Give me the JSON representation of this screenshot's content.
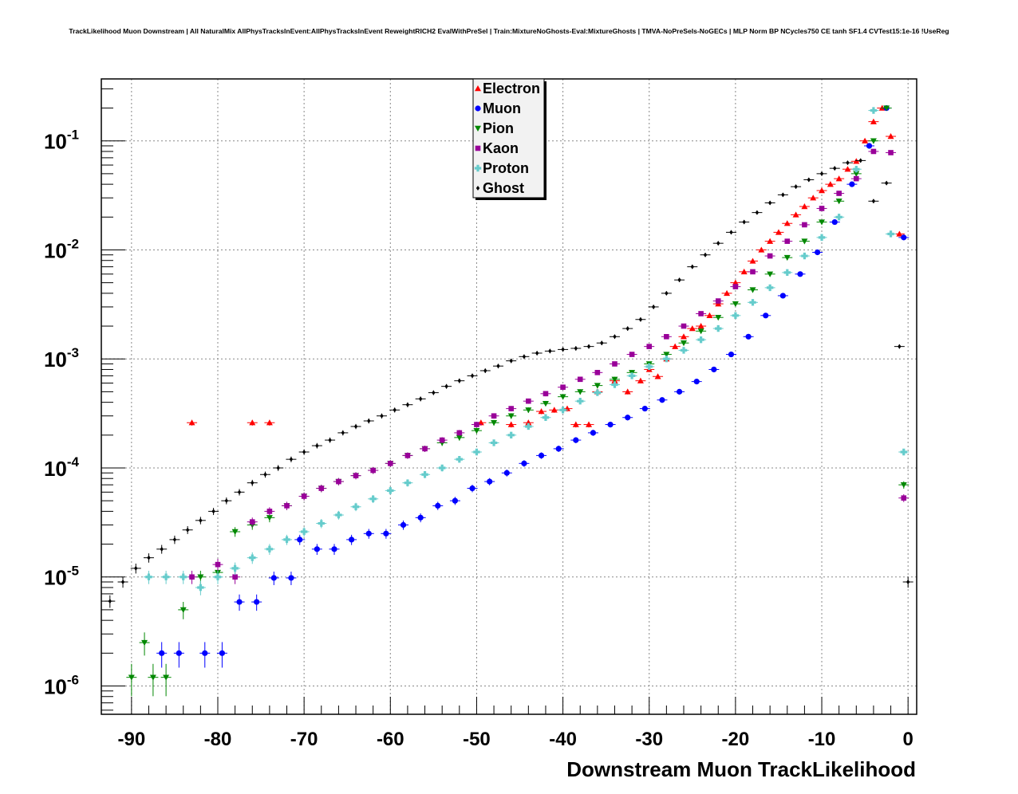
{
  "chart_data": {
    "type": "scatter",
    "title": "TrackLikelihood Muon Downstream | All NaturalMix AllPhysTracksInEvent:AllPhysTracksInEvent ReweightRICH2 EvalWithPreSel | Train:MixtureNoGhosts-Eval:MixtureGhosts | TMVA-NoPreSels-NoGECs | MLP Norm BP NCycles750 CE tanh SF1.4 CVTest15:1e-16 !UseReg",
    "xlabel": "Downstream Muon TrackLikelihood",
    "ylabel": "",
    "xlim": [
      -93.5,
      1
    ],
    "ylim": [
      5.5e-07,
      0.37
    ],
    "yscale": "log",
    "grid": true,
    "legend_position": "top-center",
    "x_ticks": [
      -90,
      -80,
      -70,
      -60,
      -50,
      -40,
      -30,
      -20,
      -10,
      0
    ],
    "x_tick_labels": [
      "-90",
      "-80",
      "-70",
      "-60",
      "-50",
      "-40",
      "-30",
      "-20",
      "-10",
      "0"
    ],
    "y_ticks": [
      1e-06,
      1e-05,
      0.0001,
      0.001,
      0.01,
      0.1
    ],
    "y_tick_labels": [
      {
        "base": "10",
        "exp": "-6"
      },
      {
        "base": "10",
        "exp": "-5"
      },
      {
        "base": "10",
        "exp": "-4"
      },
      {
        "base": "10",
        "exp": "-3"
      },
      {
        "base": "10",
        "exp": "-2"
      },
      {
        "base": "10",
        "exp": "-1"
      }
    ],
    "series": [
      {
        "name": "Electron",
        "color": "#ff0000",
        "marker": "triangle-up",
        "x": [
          -83,
          -76,
          -74,
          -49.5,
          -46,
          -44,
          -42.5,
          -41,
          -39.5,
          -38.5,
          -37,
          -36,
          -34,
          -32.5,
          -31,
          -30,
          -29,
          -28,
          -27,
          -26,
          -25,
          -24,
          -23,
          -22,
          -21,
          -20,
          -19,
          -18,
          -17,
          -16,
          -15,
          -14,
          -13,
          -12,
          -11,
          -10,
          -9,
          -8,
          -7,
          -6,
          -5,
          -4,
          -3,
          -2,
          -1
        ],
        "y": [
          0.00026,
          0.00026,
          0.00026,
          0.00026,
          0.00025,
          0.00026,
          0.00033,
          0.00034,
          0.00035,
          0.00025,
          0.00025,
          0.0005,
          0.00063,
          0.0005,
          0.00063,
          0.0008,
          0.00069,
          0.001,
          0.0013,
          0.0016,
          0.0019,
          0.002,
          0.0025,
          0.0032,
          0.004,
          0.005,
          0.0063,
          0.0079,
          0.01,
          0.012,
          0.0145,
          0.0175,
          0.021,
          0.025,
          0.03,
          0.035,
          0.04,
          0.045,
          0.055,
          0.065,
          0.1,
          0.15,
          0.2,
          0.11,
          0.014
        ]
      },
      {
        "name": "Muon",
        "color": "#0000ff",
        "marker": "circle",
        "x": [
          -86.5,
          -84.5,
          -81.5,
          -79.5,
          -77.5,
          -75.5,
          -73.5,
          -71.5,
          -70.5,
          -68.5,
          -66.5,
          -64.5,
          -62.5,
          -60.5,
          -58.5,
          -56.5,
          -54.5,
          -52.5,
          -50.5,
          -48.5,
          -46.5,
          -44.5,
          -42.5,
          -40.5,
          -38.5,
          -36.5,
          -34.5,
          -32.5,
          -30.5,
          -28.5,
          -26.5,
          -24.5,
          -22.5,
          -20.5,
          -18.5,
          -16.5,
          -14.5,
          -12.5,
          -10.5,
          -8.5,
          -6.5,
          -4.5,
          -2.5,
          -0.5
        ],
        "y": [
          2e-06,
          2e-06,
          2e-06,
          2e-06,
          5.9e-06,
          5.9e-06,
          9.8e-06,
          9.8e-06,
          2.2e-05,
          1.8e-05,
          1.8e-05,
          2.2e-05,
          2.5e-05,
          2.5e-05,
          3e-05,
          3.5e-05,
          4.5e-05,
          5e-05,
          6.5e-05,
          7.5e-05,
          9e-05,
          0.00011,
          0.00013,
          0.00015,
          0.00018,
          0.00021,
          0.00025,
          0.00029,
          0.00035,
          0.00042,
          0.0005,
          0.00062,
          0.0008,
          0.0011,
          0.0016,
          0.0025,
          0.0038,
          0.006,
          0.0095,
          0.018,
          0.04,
          0.09,
          0.2,
          0.013
        ]
      },
      {
        "name": "Pion",
        "color": "#008800",
        "marker": "triangle-down",
        "x": [
          -90,
          -88.5,
          -87.5,
          -86,
          -84,
          -82,
          -80,
          -78,
          -76,
          -74,
          -72,
          -70,
          -68,
          -66,
          -64,
          -62,
          -60,
          -58,
          -56,
          -54,
          -52,
          -50,
          -48,
          -46,
          -44,
          -42,
          -40,
          -38,
          -36,
          -34,
          -32,
          -30,
          -28,
          -26,
          -24,
          -22,
          -20,
          -18,
          -16,
          -14,
          -12,
          -10,
          -8,
          -6,
          -4,
          -2.5,
          -0.5
        ],
        "y": [
          1.2e-06,
          2.5e-06,
          1.2e-06,
          1.2e-06,
          5e-06,
          1e-05,
          1.1e-05,
          2.6e-05,
          3e-05,
          3.5e-05,
          4.5e-05,
          5.5e-05,
          6.5e-05,
          7.5e-05,
          8.5e-05,
          9.5e-05,
          0.00011,
          0.00013,
          0.00015,
          0.00017,
          0.00019,
          0.00022,
          0.00026,
          0.0003,
          0.00034,
          0.00039,
          0.00045,
          0.0005,
          0.00057,
          0.00065,
          0.00075,
          0.0009,
          0.0011,
          0.0014,
          0.0018,
          0.0024,
          0.0032,
          0.0043,
          0.006,
          0.0085,
          0.012,
          0.018,
          0.028,
          0.05,
          0.1,
          0.2,
          7e-05
        ]
      },
      {
        "name": "Kaon",
        "color": "#990099",
        "marker": "square",
        "x": [
          -83,
          -80,
          -78,
          -76,
          -74,
          -72,
          -70,
          -68,
          -66,
          -64,
          -62,
          -60,
          -58,
          -56,
          -54,
          -52,
          -50,
          -48,
          -46,
          -44,
          -42,
          -40,
          -38,
          -36,
          -34,
          -32,
          -30,
          -28,
          -26,
          -24,
          -22,
          -20,
          -18,
          -16,
          -14,
          -12,
          -10,
          -8,
          -6,
          -4,
          -2,
          -0.5
        ],
        "y": [
          1e-05,
          1.3e-05,
          1e-05,
          3.2e-05,
          4e-05,
          4.5e-05,
          5.5e-05,
          6.5e-05,
          7.5e-05,
          8.5e-05,
          9.5e-05,
          0.00011,
          0.00013,
          0.00015,
          0.00018,
          0.00021,
          0.00025,
          0.0003,
          0.00035,
          0.00041,
          0.00048,
          0.00055,
          0.00065,
          0.00075,
          0.0009,
          0.0011,
          0.0013,
          0.0016,
          0.002,
          0.0026,
          0.0034,
          0.0046,
          0.0063,
          0.0088,
          0.012,
          0.017,
          0.024,
          0.033,
          0.045,
          0.08,
          0.078,
          5.3e-05
        ]
      },
      {
        "name": "Proton",
        "color": "#66cccc",
        "marker": "cross",
        "x": [
          -88,
          -86,
          -84,
          -82,
          -80,
          -78,
          -76,
          -74,
          -72,
          -70,
          -68,
          -66,
          -64,
          -62,
          -60,
          -58,
          -56,
          -54,
          -52,
          -50,
          -48,
          -46,
          -44,
          -42,
          -40,
          -38,
          -36,
          -34,
          -32,
          -30,
          -28,
          -26,
          -24,
          -22,
          -20,
          -18,
          -16,
          -14,
          -12,
          -10,
          -8,
          -6,
          -4,
          -2,
          -0.5
        ],
        "y": [
          1e-05,
          1e-05,
          1e-05,
          8e-06,
          1e-05,
          1.2e-05,
          1.5e-05,
          1.8e-05,
          2.2e-05,
          2.6e-05,
          3.1e-05,
          3.7e-05,
          4.4e-05,
          5.2e-05,
          6.2e-05,
          7.3e-05,
          8.7e-05,
          0.0001,
          0.00012,
          0.00014,
          0.00017,
          0.0002,
          0.00024,
          0.00029,
          0.00034,
          0.00041,
          0.00049,
          0.00058,
          0.0007,
          0.00085,
          0.001,
          0.0012,
          0.0015,
          0.0019,
          0.0025,
          0.0033,
          0.0045,
          0.0062,
          0.0088,
          0.013,
          0.02,
          0.055,
          0.19,
          0.014,
          0.00014
        ]
      },
      {
        "name": "Ghost",
        "color": "#000000",
        "marker": "diamond",
        "x": [
          -92.5,
          -91,
          -89.5,
          -88,
          -86.5,
          -85,
          -83.5,
          -82,
          -80.5,
          -79,
          -77.5,
          -76,
          -74.5,
          -73,
          -71.5,
          -70,
          -68.5,
          -67,
          -65.5,
          -64,
          -62.5,
          -61,
          -59.5,
          -58,
          -56.5,
          -55,
          -53.5,
          -52,
          -50.5,
          -49,
          -47.5,
          -46,
          -44.5,
          -43,
          -41.5,
          -40,
          -38.5,
          -37,
          -35.5,
          -34,
          -32.5,
          -31,
          -29.5,
          -28,
          -26.5,
          -25,
          -23.5,
          -22,
          -20.5,
          -19,
          -17.5,
          -16,
          -14.5,
          -13,
          -11.5,
          -10,
          -8.5,
          -7,
          -5.5,
          -4,
          -2.5,
          -1,
          0
        ],
        "y": [
          6e-06,
          9e-06,
          1.2e-05,
          1.5e-05,
          1.8e-05,
          2.2e-05,
          2.7e-05,
          3.3e-05,
          4e-05,
          5e-05,
          6e-05,
          7.3e-05,
          8.7e-05,
          0.0001,
          0.00012,
          0.00014,
          0.00016,
          0.00018,
          0.00021,
          0.00024,
          0.00027,
          0.0003,
          0.00034,
          0.00038,
          0.00043,
          0.00049,
          0.00056,
          0.00063,
          0.0007,
          0.00078,
          0.00086,
          0.00096,
          0.00105,
          0.00113,
          0.00118,
          0.00122,
          0.00125,
          0.0013,
          0.0014,
          0.0016,
          0.0019,
          0.0023,
          0.003,
          0.004,
          0.0053,
          0.007,
          0.009,
          0.0115,
          0.0145,
          0.018,
          0.022,
          0.027,
          0.032,
          0.038,
          0.044,
          0.05,
          0.056,
          0.063,
          0.066,
          0.028,
          0.041,
          0.0013,
          9e-06
        ]
      }
    ]
  }
}
